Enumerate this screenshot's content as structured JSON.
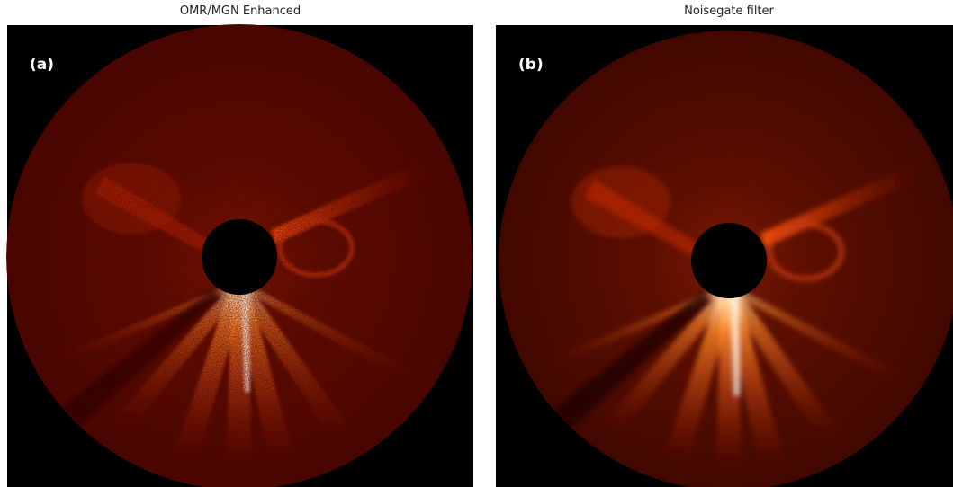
{
  "panels": [
    {
      "title": "OMR/MGN Enhanced",
      "label": "(a)"
    },
    {
      "title": "Noisegate filter",
      "label": "(b)"
    }
  ]
}
